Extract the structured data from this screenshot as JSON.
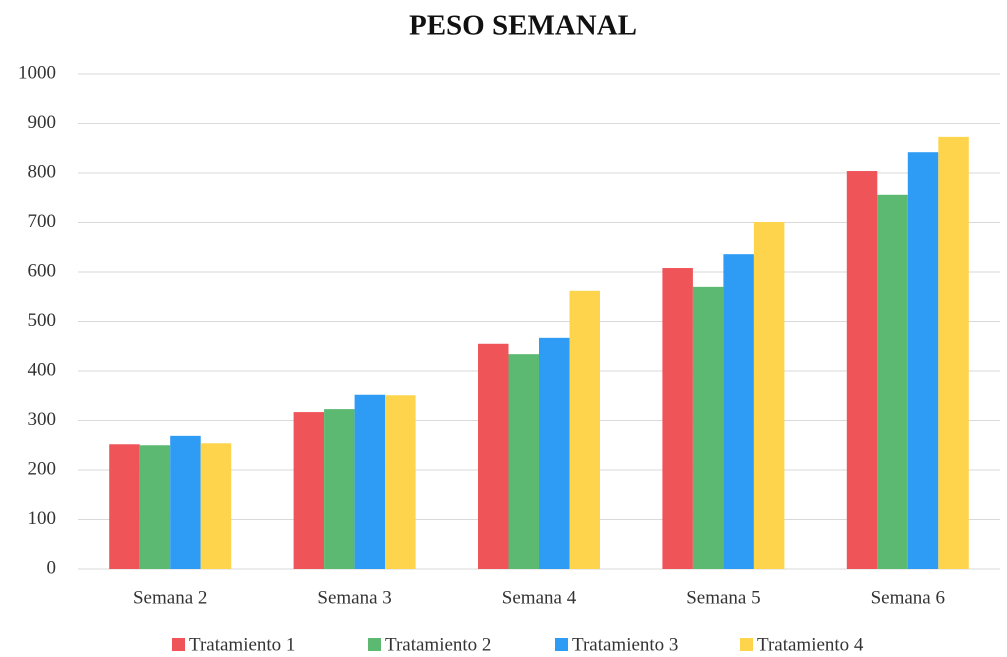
{
  "chart_data": {
    "type": "bar",
    "title": "PESO SEMANAL",
    "categories": [
      "Semana 2",
      "Semana 3",
      "Semana 4",
      "Semana 5",
      "Semana 6"
    ],
    "series": [
      {
        "name": "Tratamiento 1",
        "color": "#ef5459",
        "values": [
          252,
          317,
          455,
          608,
          804
        ]
      },
      {
        "name": "Tratamiento 2",
        "color": "#5cb971",
        "values": [
          250,
          323,
          434,
          570,
          756
        ]
      },
      {
        "name": "Tratamiento 3",
        "color": "#2e9bf5",
        "values": [
          269,
          352,
          467,
          636,
          842
        ]
      },
      {
        "name": "Tratamiento 4",
        "color": "#fdd44c",
        "values": [
          254,
          351,
          562,
          701,
          873
        ]
      }
    ],
    "ylim": [
      0,
      1000
    ],
    "yticks": [
      0,
      100,
      200,
      300,
      400,
      500,
      600,
      700,
      800,
      900,
      1000
    ],
    "grid": true,
    "legend": "bottom"
  }
}
